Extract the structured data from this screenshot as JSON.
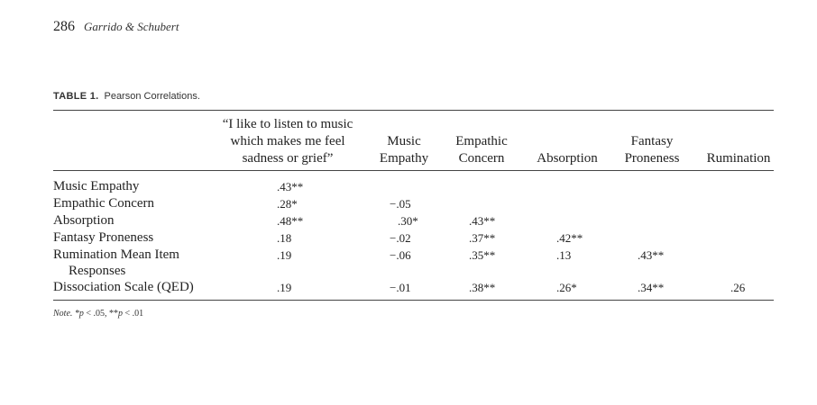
{
  "running_head": {
    "page": "286",
    "authors": "Garrido & Schubert"
  },
  "table": {
    "label": "TABLE 1.",
    "title": "Pearson Correlations.",
    "columns": [
      {
        "lines": [
          "“I like to listen to music",
          "which makes me feel",
          "sadness or grief”"
        ]
      },
      {
        "lines": [
          "Music",
          "Empathy"
        ]
      },
      {
        "lines": [
          "Empathic",
          "Concern"
        ]
      },
      {
        "lines": [
          "Absorption"
        ]
      },
      {
        "lines": [
          "Fantasy",
          "Proneness"
        ]
      },
      {
        "lines": [
          "Rumination"
        ]
      }
    ],
    "rows": [
      {
        "label": "Music Empathy",
        "cells": [
          ".43**",
          "",
          "",
          "",
          "",
          ""
        ]
      },
      {
        "label": "Empathic Concern",
        "cells": [
          ".28*",
          "−.05",
          "",
          "",
          "",
          ""
        ]
      },
      {
        "label": "Absorption",
        "cells": [
          ".48**",
          ".30*",
          ".43**",
          "",
          "",
          ""
        ]
      },
      {
        "label": "Fantasy Proneness",
        "cells": [
          ".18",
          "−.02",
          ".37**",
          ".42**",
          "",
          ""
        ]
      },
      {
        "label": "Rumination Mean Item",
        "label_cont": "Responses",
        "cells": [
          ".19",
          "−.06",
          ".35**",
          ".13",
          ".43**",
          ""
        ]
      },
      {
        "label": "Dissociation Scale (QED)",
        "cells": [
          ".19",
          "−.01",
          ".38**",
          ".26*",
          ".34**",
          ".26"
        ]
      }
    ]
  },
  "note": {
    "label": "Note.",
    "p1": "*p",
    "t1": " < .05, **",
    "p2": "p",
    "t2": " < .01"
  }
}
